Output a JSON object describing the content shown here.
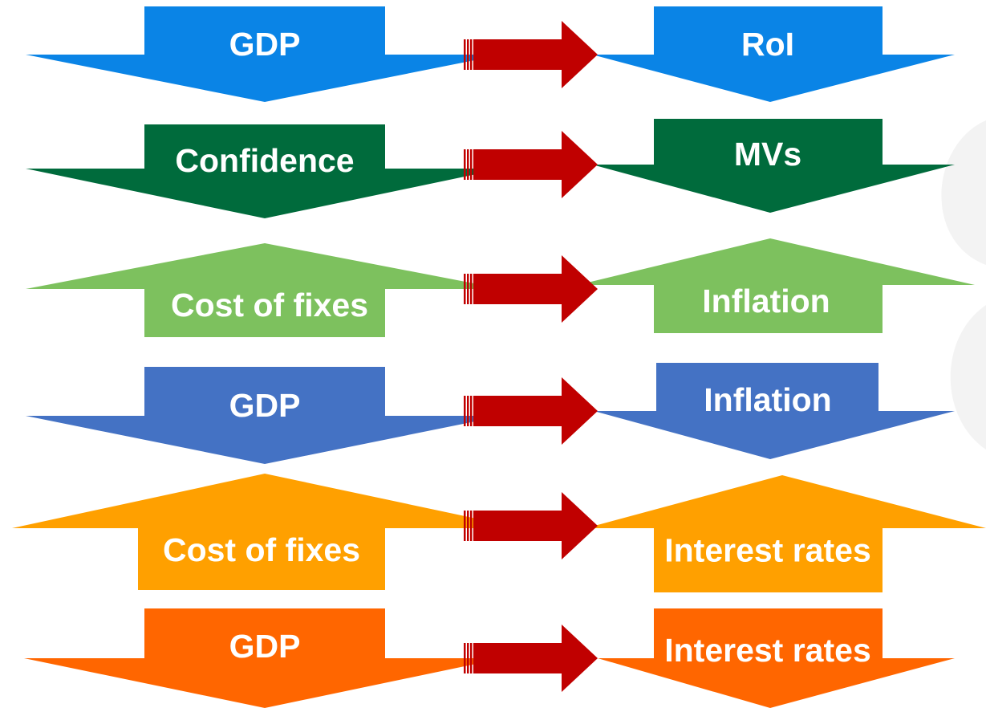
{
  "rows": [
    {
      "cause": "GDP",
      "effect": "RoI"
    },
    {
      "cause": "Confidence",
      "effect": "MVs"
    },
    {
      "cause": "Cost of fixes",
      "effect": "Inflation"
    },
    {
      "cause": "GDP",
      "effect": "Inflation"
    },
    {
      "cause": "Cost of fixes",
      "effect": "Interest rates"
    },
    {
      "cause": "GDP",
      "effect": "Interest rates"
    }
  ]
}
